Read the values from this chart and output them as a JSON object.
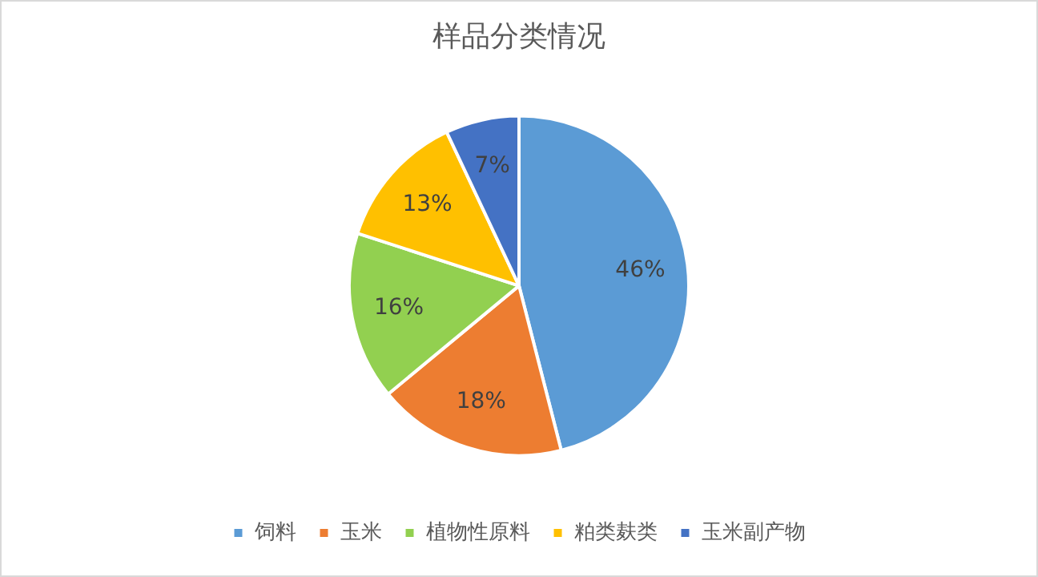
{
  "chart_data": {
    "type": "pie",
    "title": "样品分类情况",
    "categories": [
      "饲料",
      "玉米",
      "植物性原料",
      "粕类麸类",
      "玉米副产物"
    ],
    "values": [
      46,
      18,
      16,
      13,
      7
    ],
    "colors": [
      "#5b9bd5",
      "#ed7d31",
      "#92d050",
      "#ffc000",
      "#4472c4"
    ],
    "value_labels": [
      "46%",
      "18%",
      "16%",
      "13%",
      "7%"
    ],
    "legend": "bottom"
  }
}
